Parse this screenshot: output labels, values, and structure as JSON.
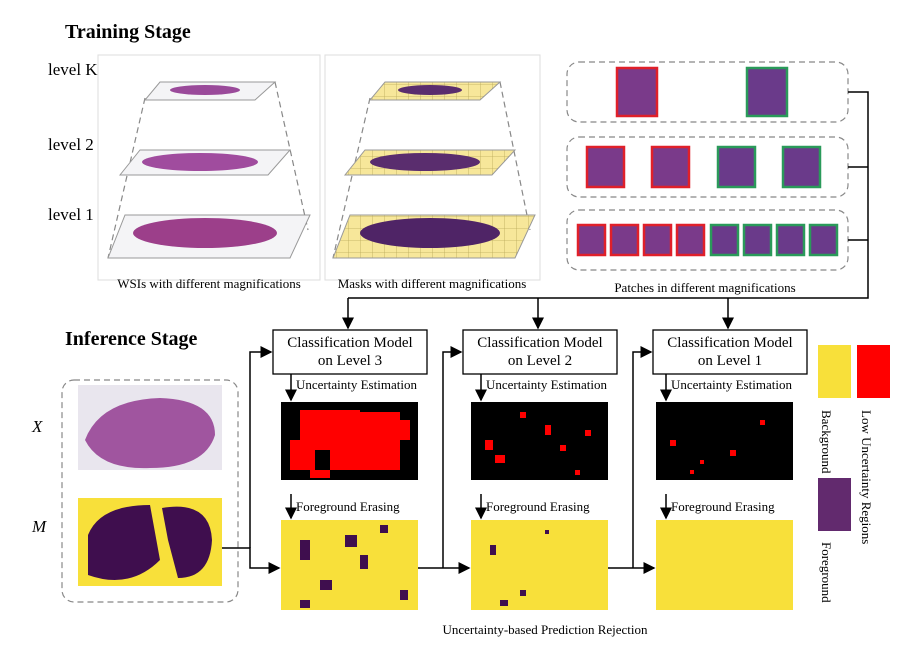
{
  "training": {
    "title": "Training Stage",
    "levels": [
      "level K",
      "level 2",
      "level 1"
    ],
    "captions": [
      "WSIs with different magnifications",
      "Masks with different magnifications",
      "Patches in different magnifications"
    ]
  },
  "inference": {
    "title": "Inference Stage",
    "inputs": [
      "X",
      "M"
    ],
    "models": [
      [
        "Classification Model",
        "on Level 3"
      ],
      [
        "Classification Model",
        "on Level 2"
      ],
      [
        "Classification Model",
        "on Level 1"
      ]
    ],
    "step1": [
      "Uncertainty Estimation",
      "Uncertainty Estimation",
      "Uncertainty Estimation"
    ],
    "step2": [
      "Foreground Erasing",
      "Foreground Erasing",
      "Foreground Erasing"
    ],
    "caption": "Uncertainty-based Prediction Rejection"
  },
  "legend": [
    "Background",
    "Low Uncertainty Regions",
    "Foreground"
  ]
}
